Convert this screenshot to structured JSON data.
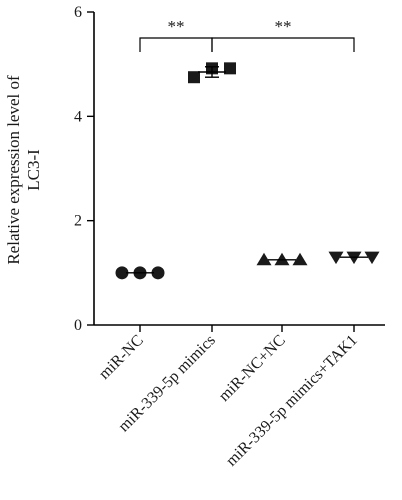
{
  "chart_data": {
    "type": "scatter",
    "title": "",
    "xlabel": "",
    "ylabel_lines": [
      "Relative expression level of",
      "LC3-I"
    ],
    "ylim": [
      0,
      6
    ],
    "yticks": [
      0,
      2,
      4,
      6
    ],
    "categories": [
      "miR-NC",
      "miR-339-5p mimics",
      "miR-NC+NC",
      "miR-339-5p mimics+TAK1"
    ],
    "groups": [
      {
        "category": "miR-NC",
        "marker": "circle",
        "points": [
          1.0,
          1.0,
          1.0
        ],
        "mean": 1.0,
        "err": 0.0
      },
      {
        "category": "miR-339-5p mimics",
        "marker": "square",
        "points": [
          4.75,
          4.92,
          4.92
        ],
        "mean": 4.85,
        "err": 0.1
      },
      {
        "category": "miR-NC+NC",
        "marker": "triangle-up",
        "points": [
          1.25,
          1.25,
          1.25
        ],
        "mean": 1.25,
        "err": 0.0
      },
      {
        "category": "miR-339-5p mimics+TAK1",
        "marker": "triangle-down",
        "points": [
          1.3,
          1.3,
          1.3
        ],
        "mean": 1.3,
        "err": 0.0
      }
    ],
    "annotations": [
      {
        "from": 0,
        "to": 1,
        "text": "**"
      },
      {
        "from": 1,
        "to": 3,
        "text": "**"
      }
    ],
    "color": "#1a1a1a"
  }
}
